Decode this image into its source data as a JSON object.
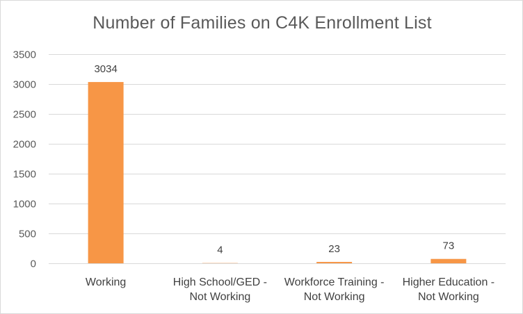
{
  "chart_data": {
    "type": "bar",
    "title": "Number of Families on C4K Enrollment List",
    "categories": [
      [
        "Working"
      ],
      [
        "High School/GED -",
        "Not Working"
      ],
      [
        "Workforce Training -",
        "Not Working"
      ],
      [
        "Higher Education -",
        "Not Working"
      ]
    ],
    "values": [
      3034,
      4,
      23,
      73
    ],
    "data_labels": [
      "3034",
      "4",
      "23",
      "73"
    ],
    "xlabel": "",
    "ylabel": "",
    "ylim": [
      0,
      3500
    ],
    "yticks": [
      0,
      500,
      1000,
      1500,
      2000,
      2500,
      3000,
      3500
    ],
    "grid": true,
    "legend": "none",
    "colors": {
      "bar": "#F79646",
      "grid": "#d9d9d9",
      "text": "#595959"
    }
  }
}
